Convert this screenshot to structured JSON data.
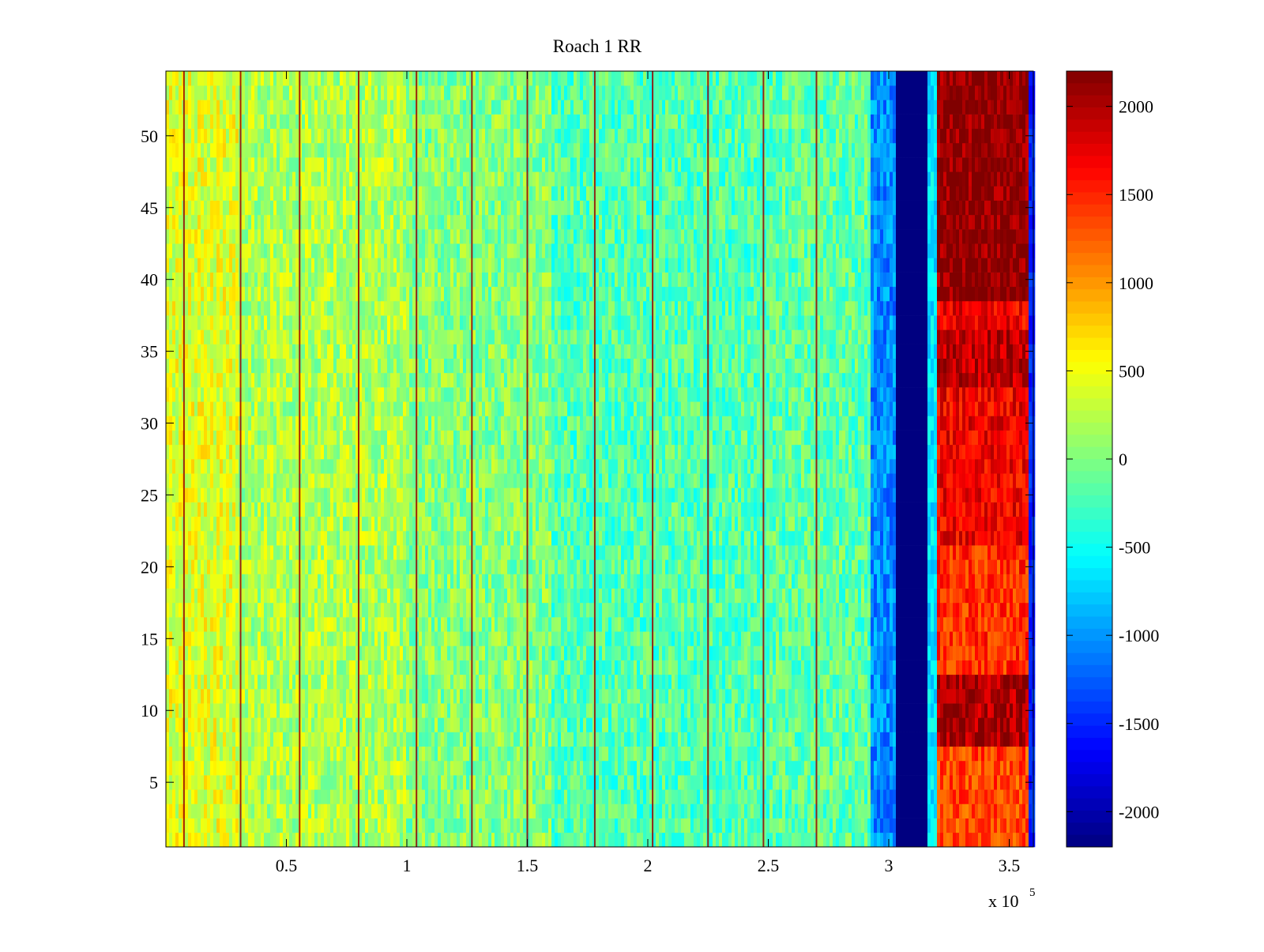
{
  "chart_data": {
    "type": "heatmap",
    "title": "Roach 1 RR",
    "xlabel": "",
    "ylabel": "",
    "x_multiplier_label": "x 10",
    "x_multiplier_exponent": "5",
    "xlim": [
      0,
      3.6
    ],
    "ylim": [
      0.5,
      54.5
    ],
    "x_ticks": [
      {
        "value": 0.5,
        "label": "0.5"
      },
      {
        "value": 1,
        "label": "1"
      },
      {
        "value": 1.5,
        "label": "1.5"
      },
      {
        "value": 2,
        "label": "2"
      },
      {
        "value": 2.5,
        "label": "2.5"
      },
      {
        "value": 3,
        "label": "3"
      },
      {
        "value": 3.5,
        "label": "3.5"
      }
    ],
    "y_ticks": [
      {
        "value": 5,
        "label": "5"
      },
      {
        "value": 10,
        "label": "10"
      },
      {
        "value": 15,
        "label": "15"
      },
      {
        "value": 20,
        "label": "20"
      },
      {
        "value": 25,
        "label": "25"
      },
      {
        "value": 30,
        "label": "30"
      },
      {
        "value": 35,
        "label": "35"
      },
      {
        "value": 40,
        "label": "40"
      },
      {
        "value": 45,
        "label": "45"
      },
      {
        "value": 50,
        "label": "50"
      }
    ],
    "rows": 54,
    "colorbar": {
      "range": [
        -2200,
        2200
      ],
      "colormap": "jet",
      "ticks": [
        {
          "value": 2000,
          "label": "2000"
        },
        {
          "value": 1500,
          "label": "1500"
        },
        {
          "value": 1000,
          "label": "1000"
        },
        {
          "value": 500,
          "label": "500"
        },
        {
          "value": 0,
          "label": "0"
        },
        {
          "value": -500,
          "label": "-500"
        },
        {
          "value": -1000,
          "label": "-1000"
        },
        {
          "value": -1500,
          "label": "-1500"
        },
        {
          "value": -2000,
          "label": "-2000"
        }
      ]
    },
    "regions": [
      {
        "x_start": 0.0,
        "x_end": 0.3,
        "mean": 420,
        "spread": 350
      },
      {
        "x_start": 0.3,
        "x_end": 1.0,
        "mean": 200,
        "spread": 350
      },
      {
        "x_start": 1.0,
        "x_end": 1.6,
        "mean": 20,
        "spread": 350
      },
      {
        "x_start": 1.6,
        "x_end": 2.5,
        "mean": -200,
        "spread": 350
      },
      {
        "x_start": 2.5,
        "x_end": 2.92,
        "mean": -150,
        "spread": 350
      },
      {
        "x_start": 2.92,
        "x_end": 3.03,
        "mean": -1050,
        "spread": 300
      },
      {
        "x_start": 3.03,
        "x_end": 3.15,
        "mean": -2200,
        "spread": 0
      },
      {
        "x_start": 3.15,
        "x_end": 3.2,
        "mean": -650,
        "spread": 250
      },
      {
        "x_start": 3.2,
        "x_end": 3.57,
        "mean": 1700,
        "spread": 300
      },
      {
        "x_start": 3.57,
        "x_end": 3.6,
        "mean": -1500,
        "spread": 200
      }
    ],
    "row_offsets_upper_rightband": [
      {
        "y_start": 39,
        "y_end": 54.5,
        "offset": 450
      },
      {
        "y_start": 33,
        "y_end": 36,
        "offset": 250
      },
      {
        "y_start": 8,
        "y_end": 12,
        "offset": 300
      },
      {
        "y_start": 0.5,
        "y_end": 7,
        "offset": -350
      },
      {
        "y_start": 13,
        "y_end": 21,
        "offset": -250
      }
    ],
    "stripe_lines_x": [
      0.075,
      0.31,
      0.555,
      0.8,
      1.04,
      1.27,
      1.5,
      1.78,
      2.02,
      2.25,
      2.48,
      2.7
    ],
    "stripe_value": 2100
  }
}
